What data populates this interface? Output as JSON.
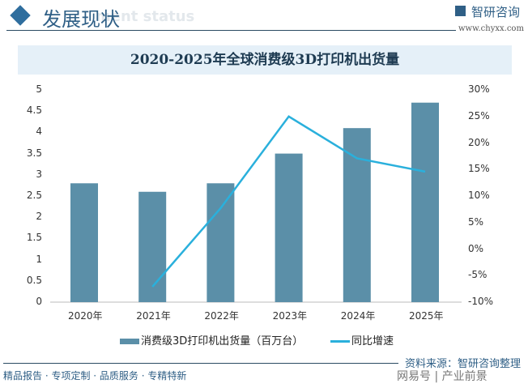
{
  "header": {
    "title": "发展现状",
    "ghost_text": "ment status",
    "brand": "智研咨询",
    "url": "www.chyxx.com"
  },
  "chart_data": {
    "type": "bar+line",
    "title": "2020-2025年全球消费级3D打印机出货量",
    "categories": [
      "2020年",
      "2021年",
      "2022年",
      "2023年",
      "2024年",
      "2025年"
    ],
    "series": [
      {
        "name": "消费级3D打印机出货量（百万台）",
        "type": "bar",
        "axis": "left",
        "color": "#5b8fa8",
        "values": [
          2.8,
          2.6,
          2.8,
          3.5,
          4.1,
          4.7
        ]
      },
      {
        "name": "同比增速",
        "type": "line",
        "axis": "right",
        "color": "#2ab0dc",
        "values": [
          null,
          -7.1,
          7.7,
          25.0,
          17.1,
          14.6
        ]
      }
    ],
    "y_left": {
      "range": [
        0,
        5
      ],
      "ticks": [
        "0",
        "0.5",
        "1",
        "1.5",
        "2",
        "2.5",
        "3",
        "3.5",
        "4",
        "4.5",
        "5"
      ]
    },
    "y_right": {
      "range": [
        -10,
        30
      ],
      "ticks": [
        "-10%",
        "-5%",
        "0%",
        "5%",
        "10%",
        "15%",
        "20%",
        "25%",
        "30%"
      ]
    },
    "grid": false,
    "legend": "bottom"
  },
  "footer": {
    "left": "精品报告 · 专项定制 · 品质服务 · 专精特新",
    "source": "资料来源：智研咨询整理",
    "watermark": "网易号 | 产业前景"
  }
}
